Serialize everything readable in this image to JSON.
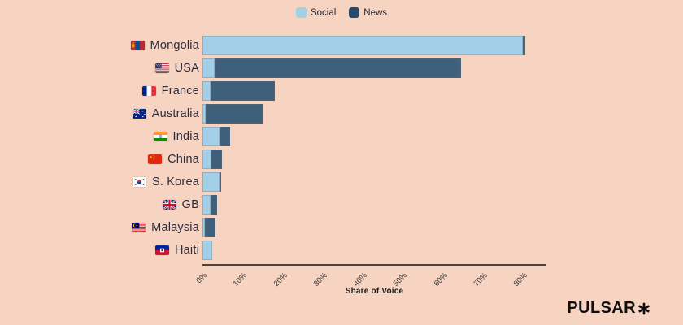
{
  "colors": {
    "background": "#f7d3c2",
    "social": "#a3cfe8",
    "news": "#3f607a",
    "legend_news": "#25496e",
    "axis_line": "#4a4540",
    "label_text": "#2d2d3a",
    "logo_text_color": "#0e0e0e"
  },
  "legend": {
    "items": [
      {
        "label": "Social",
        "color": "#a3cfe8"
      },
      {
        "label": "News",
        "color": "#25496e"
      }
    ]
  },
  "chart_data": {
    "type": "bar",
    "orientation": "horizontal",
    "stacked": true,
    "title": "",
    "xlabel": "Share of Voice",
    "ylabel": "",
    "xlim": [
      0,
      86
    ],
    "x_ticks": [
      "0%",
      "10%",
      "20%",
      "30%",
      "40%",
      "50%",
      "60%",
      "70%",
      "80%"
    ],
    "grid": false,
    "legend_position": "top-center",
    "categories": [
      "Mongolia",
      "USA",
      "France",
      "Australia",
      "India",
      "China",
      "S. Korea",
      "GB",
      "Malaysia",
      "Haiti"
    ],
    "flag_icons": [
      "flag-mongolia-icon",
      "flag-usa-icon",
      "flag-france-icon",
      "flag-australia-icon",
      "flag-india-icon",
      "flag-china-icon",
      "flag-south-korea-icon",
      "flag-gb-icon",
      "flag-malaysia-icon",
      "flag-haiti-icon"
    ],
    "flag_codes": [
      "mn",
      "us",
      "fr",
      "au",
      "in",
      "cn",
      "kr",
      "gb",
      "my",
      "ht"
    ],
    "series": [
      {
        "name": "Social",
        "color": "#a3cfe8",
        "values": [
          80.0,
          3.0,
          2.0,
          0.8,
          4.3,
          2.2,
          4.3,
          2.0,
          0.5,
          2.5
        ]
      },
      {
        "name": "News",
        "color": "#3f607a",
        "values": [
          0.5,
          61.5,
          16.0,
          14.2,
          2.7,
          2.7,
          0.4,
          1.6,
          2.7,
          0.0
        ]
      }
    ]
  },
  "branding": {
    "logo_text": "PULSAR",
    "logo_mark": "asterisk"
  }
}
